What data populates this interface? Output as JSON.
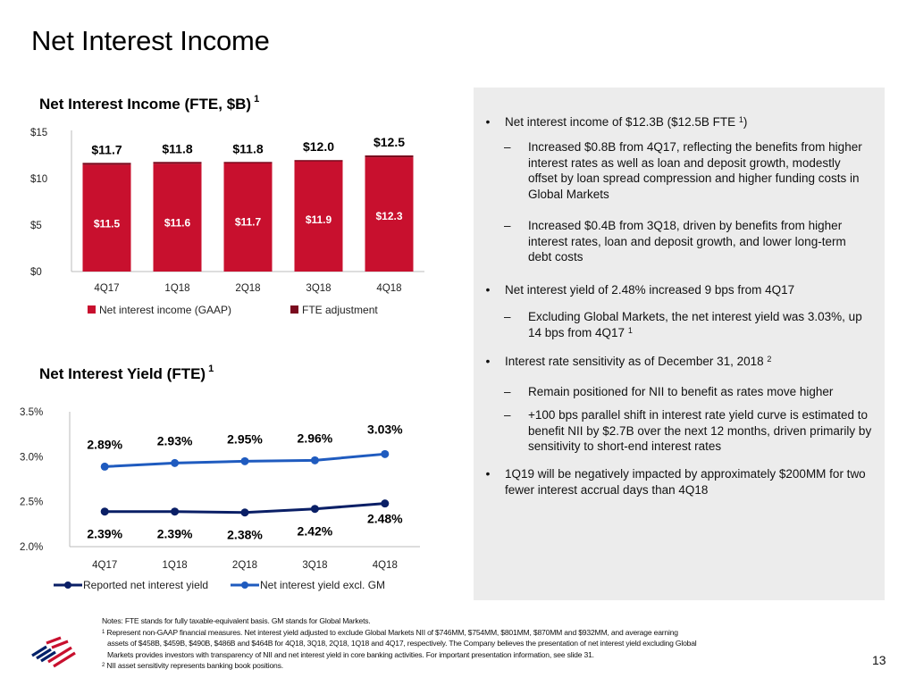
{
  "page": {
    "title": "Net Interest Income",
    "page_number": "13"
  },
  "brand": {
    "logo_icon": "bank-flag-logo-icon",
    "colors": {
      "red": "#C8102E",
      "navy": "#012169",
      "panel_bg": "#ECECEC"
    }
  },
  "chart_data": [
    {
      "type": "bar",
      "stacked": true,
      "title": "Net Interest Income (FTE, $B)",
      "title_footnote": "1",
      "categories": [
        "4Q17",
        "1Q18",
        "2Q18",
        "3Q18",
        "4Q18"
      ],
      "series": [
        {
          "name": "Net interest income (GAAP)",
          "color": "#C8102E",
          "values": [
            11.5,
            11.6,
            11.7,
            11.9,
            12.3
          ],
          "labels": [
            "$11.5",
            "$11.6",
            "$11.7",
            "$11.9",
            "$12.3"
          ]
        },
        {
          "name": "FTE adjustment",
          "color": "#7A0A1E",
          "values": [
            0.2,
            0.2,
            0.1,
            0.1,
            0.2
          ]
        }
      ],
      "totals": [
        11.7,
        11.8,
        11.8,
        12.0,
        12.5
      ],
      "total_labels": [
        "$11.7",
        "$11.8",
        "$11.8",
        "$12.0",
        "$12.5"
      ],
      "ylim": [
        0,
        15
      ],
      "yticks": [
        0,
        5,
        10,
        15
      ],
      "ytick_labels": [
        "$0",
        "$5",
        "$10",
        "$15"
      ],
      "xlabel": "",
      "ylabel": "",
      "grid": false,
      "legend_position": "bottom"
    },
    {
      "type": "line",
      "title": "Net Interest Yield (FTE)",
      "title_footnote": "1",
      "categories": [
        "4Q17",
        "1Q18",
        "2Q18",
        "3Q18",
        "4Q18"
      ],
      "series": [
        {
          "name": "Reported net interest yield",
          "color": "#0A1F66",
          "values": [
            2.39,
            2.39,
            2.38,
            2.42,
            2.48
          ],
          "labels": [
            "2.39%",
            "2.39%",
            "2.38%",
            "2.42%",
            "2.48%"
          ]
        },
        {
          "name": "Net interest yield excl. GM",
          "color": "#1F5BBF",
          "values": [
            2.89,
            2.93,
            2.95,
            2.96,
            3.03
          ],
          "labels": [
            "2.89%",
            "2.93%",
            "2.95%",
            "2.96%",
            "3.03%"
          ]
        }
      ],
      "ylim": [
        2.0,
        3.5
      ],
      "yticks": [
        2.0,
        2.5,
        3.0,
        3.5
      ],
      "ytick_labels": [
        "2.0%",
        "2.5%",
        "3.0%",
        "3.5%"
      ],
      "xlabel": "",
      "ylabel": "",
      "grid": false,
      "legend_position": "bottom"
    }
  ],
  "commentary": {
    "b1": {
      "text": "Net interest income of $12.3B ($12.5B FTE ",
      "fn": "1",
      "after": ")"
    },
    "b1_s1": "Increased $0.8B from 4Q17, reflecting the benefits from higher interest rates as well as loan and deposit growth, modestly offset by loan spread compression and higher funding costs in Global Markets",
    "b1_s2": "Increased $0.4B from 3Q18, driven by benefits from higher interest rates, loan and deposit growth, and lower long-term debt costs",
    "b2": "Net interest yield of 2.48% increased 9 bps from 4Q17",
    "b2_s1": {
      "text": "Excluding Global Markets, the net interest yield was 3.03%, up 14 bps from 4Q17 ",
      "fn": "1"
    },
    "b3": {
      "text": "Interest rate sensitivity as of December 31, 2018 ",
      "fn": "2"
    },
    "b3_s1": "Remain positioned for NII to benefit as rates move higher",
    "b3_s2": "+100 bps parallel shift in interest rate yield curve is estimated to benefit NII by $2.7B over the next 12 months, driven primarily by sensitivity to short-end interest rates",
    "b4": "1Q19 will be negatively impacted by approximately $200MM for two fewer interest accrual days than 4Q18",
    "bullet_glyph": "•",
    "dash_glyph": "–"
  },
  "notes": {
    "line1": "Notes: FTE stands for fully taxable-equivalent basis. GM stands for Global Markets.",
    "fn1_mark": "1",
    "fn1_line1": "Represent non-GAAP financial measures. Net interest yield adjusted to exclude Global Markets NII of $746MM, $754MM, $801MM, $870MM and $932MM, and average earning",
    "fn1_line2": "assets of $458B, $459B, $490B, $486B and $464B for 4Q18, 3Q18, 2Q18, 1Q18 and 4Q17, respectively. The Company believes the presentation of net interest yield excluding Global",
    "fn1_line3": "Markets provides investors with transparency of NII and net interest yield in core banking activities. For important presentation information, see slide 31.",
    "fn2_mark": "2",
    "fn2_line1": "NII asset sensitivity represents banking book positions."
  }
}
